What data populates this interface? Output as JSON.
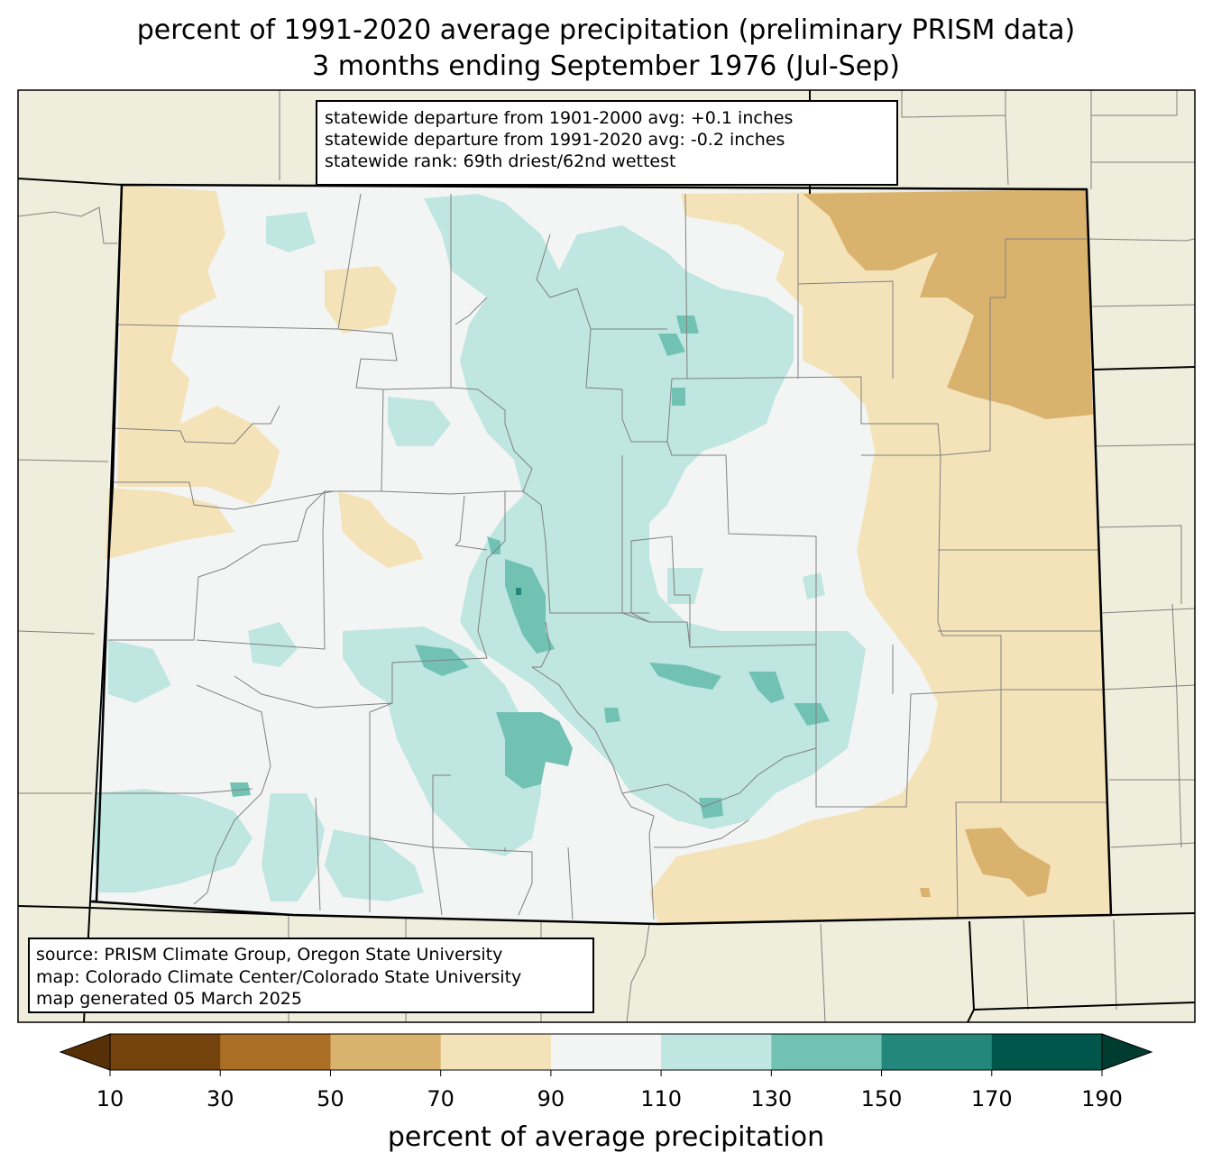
{
  "title": {
    "line1": "percent of 1991-2020 average precipitation (preliminary PRISM data)",
    "line2": "3 months ending September 1976 (Jul-Sep)"
  },
  "stats": {
    "line1": "statewide departure from 1901-2000 avg: +0.1 inches",
    "line2": "statewide departure from 1991-2020 avg: -0.2 inches",
    "line3": "statewide rank: 69th driest/62nd wettest"
  },
  "source": {
    "line1": "source: PRISM Climate Group, Oregon State University",
    "line2": "map: Colorado Climate Center/Colorado State University",
    "line3": "map generated 05 March 2025"
  },
  "colorbar": {
    "label": "percent of average precipitation",
    "ticks": [
      "10",
      "30",
      "50",
      "70",
      "90",
      "110",
      "130",
      "150",
      "170",
      "190"
    ],
    "colors": [
      "#74420d",
      "#aa6e24",
      "#d9b36e",
      "#f4e3b9",
      "#f3f5f4",
      "#bfe6e0",
      "#72c2b4",
      "#23877c",
      "#00564a"
    ],
    "under_color": "#573008",
    "over_color": "#013c31"
  },
  "map_colors": {
    "background": "#efeddb",
    "state_fill": "#f3f5f4",
    "border": "#000000",
    "county_line": "#808080"
  }
}
